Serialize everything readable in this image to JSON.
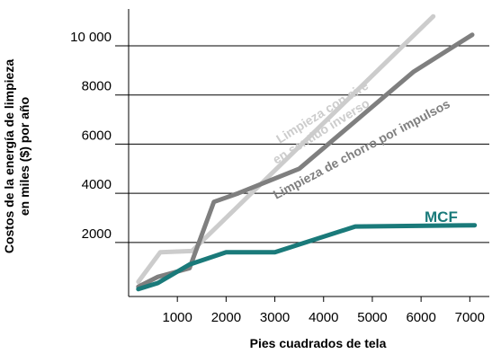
{
  "chart_data": {
    "type": "line",
    "xlabel": "Pies cuadrados de tela",
    "ylabel_lines": [
      "Costos de la energía de limpieza",
      "en miles ($) por año"
    ],
    "x_ticks": [
      1000,
      2000,
      3000,
      4000,
      5000,
      6000,
      7000
    ],
    "x_tick_labels": [
      "1000",
      "2000",
      "3000",
      "4000",
      "5000",
      "6000",
      "7000"
    ],
    "y_ticks": [
      2000,
      4000,
      6000,
      8000,
      10000
    ],
    "y_tick_labels": [
      "2000",
      "4000",
      "6000",
      "8000",
      "10 000"
    ],
    "xlim": [
      0,
      7400
    ],
    "ylim": [
      -200,
      11500
    ],
    "grid": "horizontal",
    "series": [
      {
        "name": "Limpieza con aire en sentido inverso",
        "label_lines": [
          "Limpieza con aire",
          "en sentido inverso"
        ],
        "color": "#cccccc",
        "x": [
          200,
          650,
          1300,
          6250
        ],
        "y": [
          400,
          1600,
          1650,
          11200
        ]
      },
      {
        "name": "Limpieza de chorro por impulsos",
        "label_lines": [
          "Limpieza de chorro por impulsos"
        ],
        "color": "#7f7f7f",
        "x": [
          200,
          600,
          1250,
          1750,
          2250,
          3000,
          3500,
          5850,
          7050
        ],
        "y": [
          200,
          600,
          950,
          3650,
          4000,
          4600,
          5000,
          8950,
          10450
        ]
      },
      {
        "name": "MCF",
        "label_lines": [
          "MCF"
        ],
        "color": "#1a7a7a",
        "x": [
          200,
          600,
          1250,
          2000,
          3000,
          4650,
          7100
        ],
        "y": [
          100,
          350,
          1100,
          1600,
          1600,
          2650,
          2700
        ]
      }
    ]
  }
}
